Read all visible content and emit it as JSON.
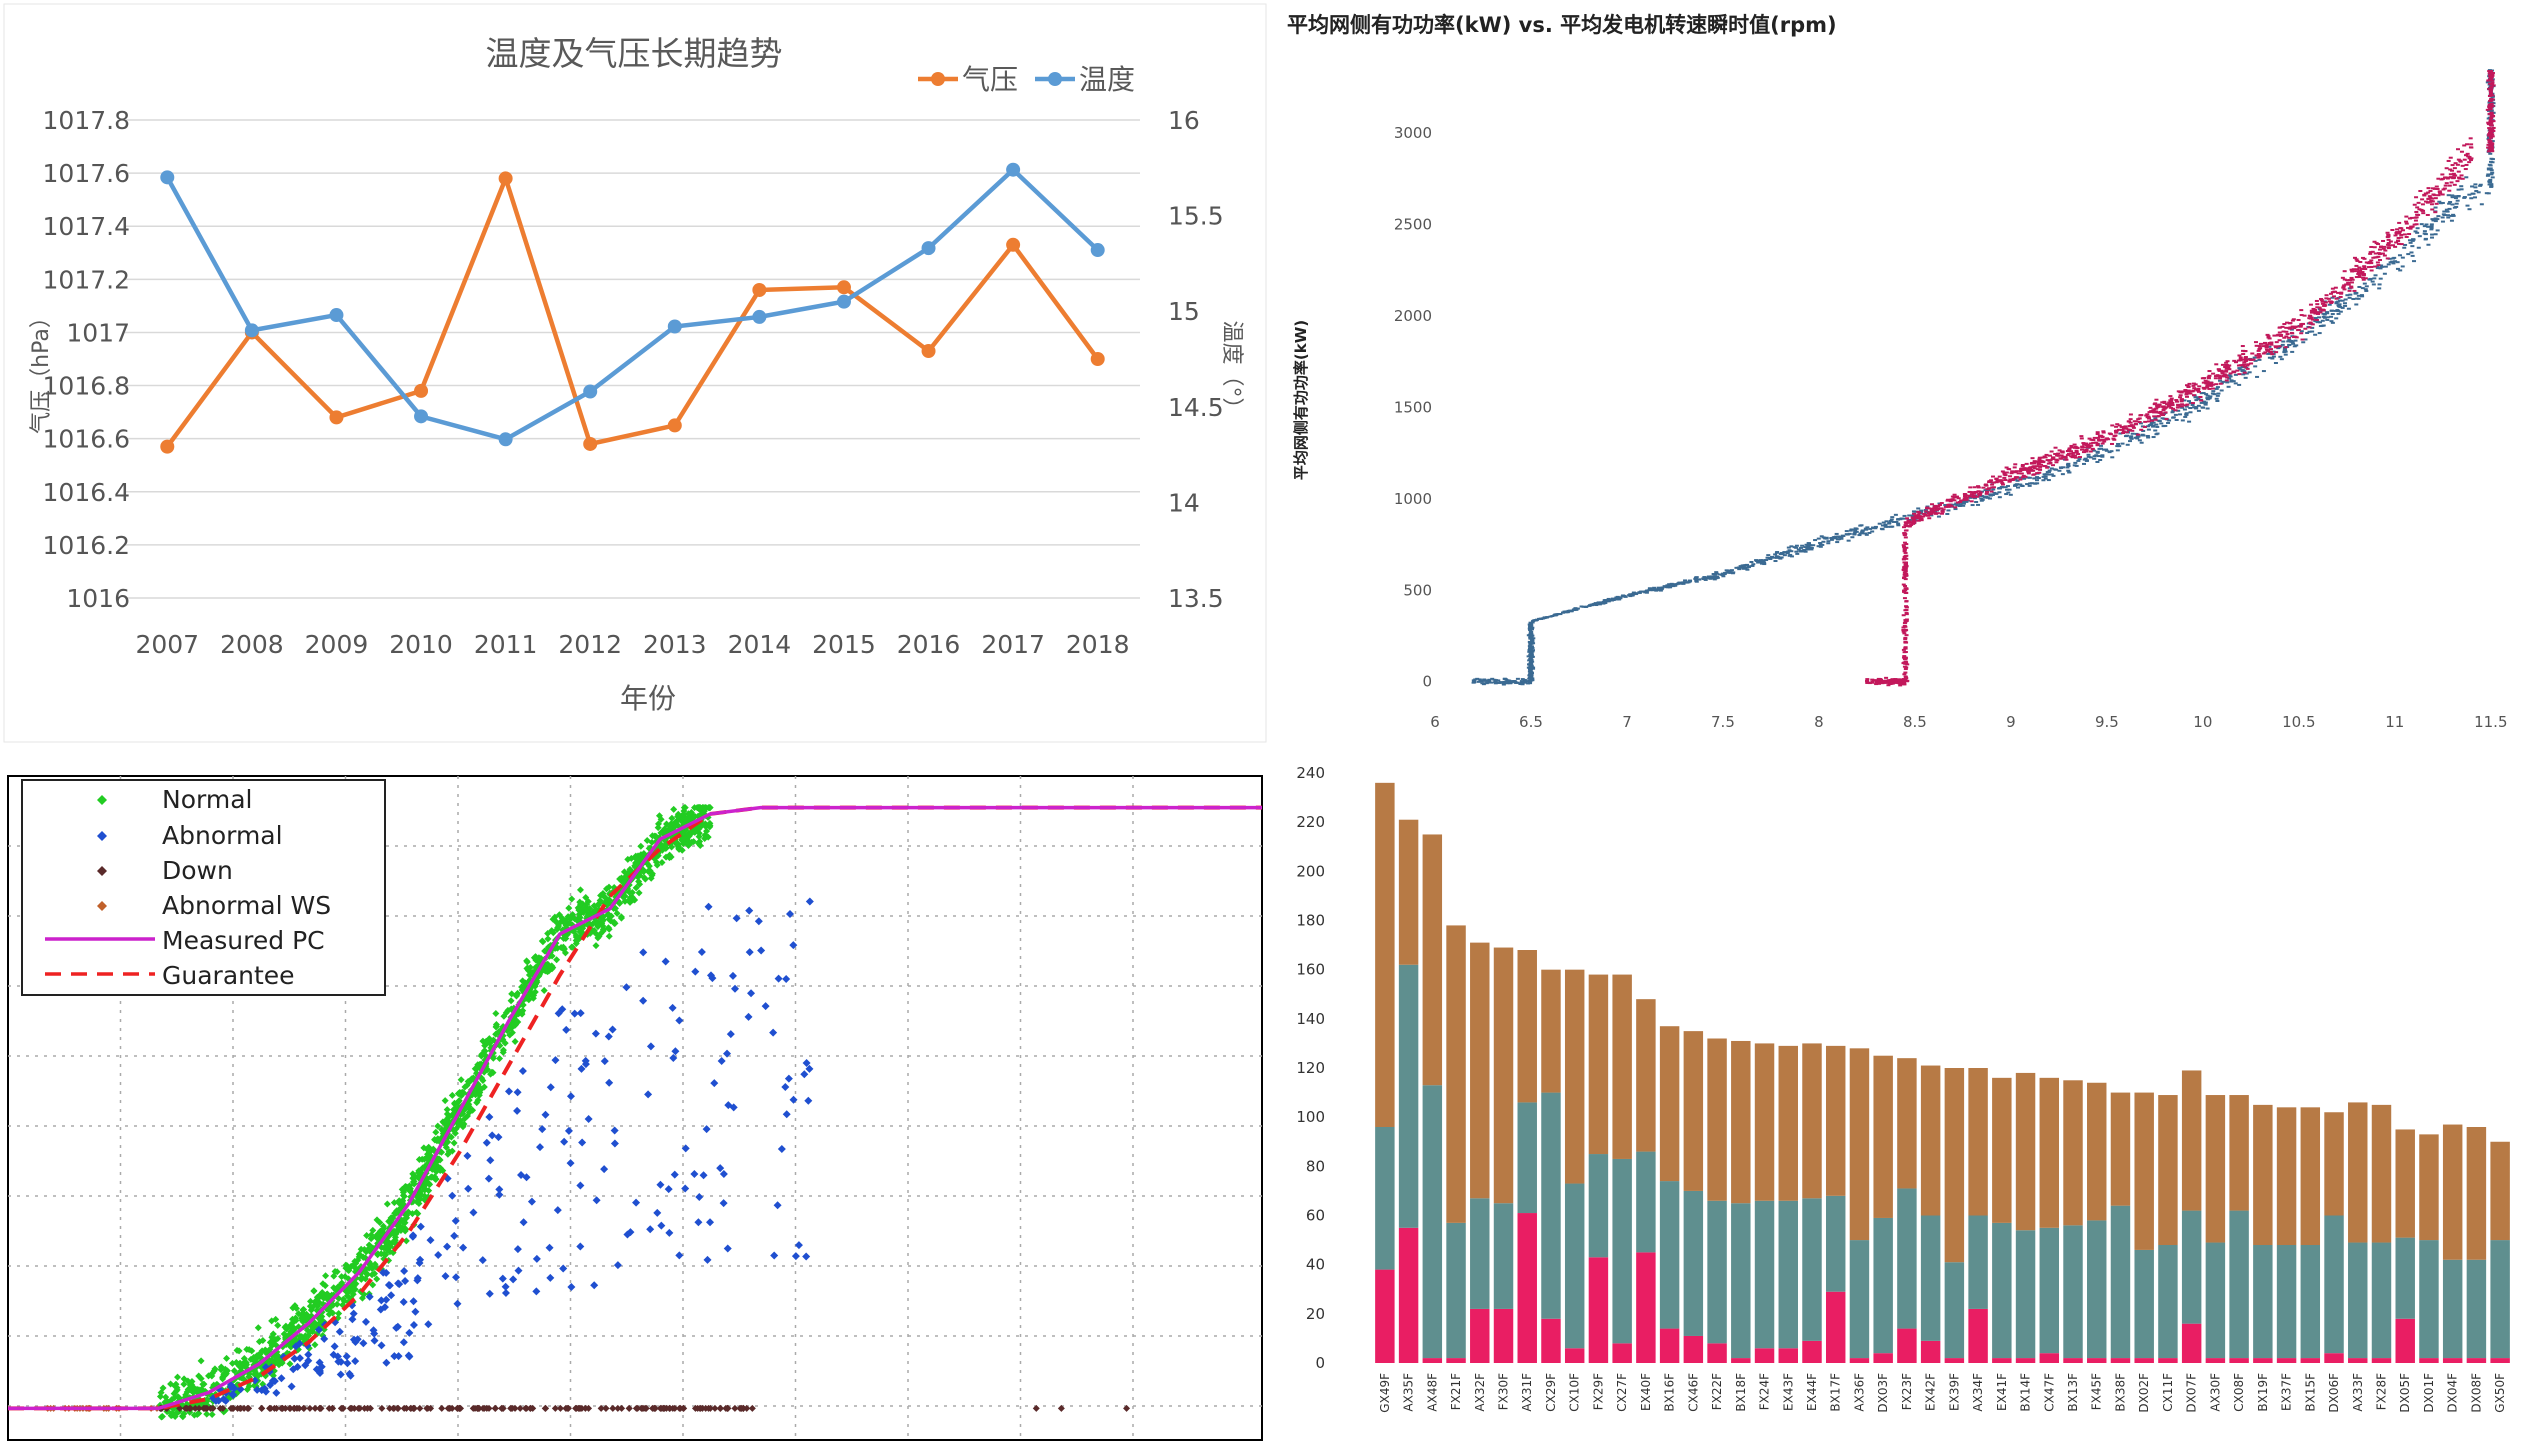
{
  "chart_data": [
    {
      "type": "line",
      "title": "温度及气压长期趋势",
      "xlabel": "年份",
      "ylabel_left": "气压（hPa）",
      "ylabel_right": "温度（°）",
      "x": [
        "2007",
        "2008",
        "2009",
        "2010",
        "2011",
        "2012",
        "2013",
        "2014",
        "2015",
        "2016",
        "2017",
        "2018"
      ],
      "y_left_ticks": [
        "1016",
        "1016.2",
        "1016.4",
        "1016.6",
        "1016.8",
        "1017",
        "1017.2",
        "1017.4",
        "1017.6",
        "1017.8"
      ],
      "y_right_ticks": [
        "13.5",
        "14",
        "14.5",
        "15",
        "15.5",
        "16"
      ],
      "ylim_left": [
        1016,
        1017.8
      ],
      "ylim_right": [
        13.5,
        16
      ],
      "legend": "top-right",
      "series": [
        {
          "name": "气压",
          "axis": "left",
          "color": "#ed7d31",
          "values": [
            1016.57,
            1017.0,
            1016.68,
            1016.78,
            1017.58,
            1016.58,
            1016.65,
            1017.16,
            1017.17,
            1016.93,
            1017.33,
            1016.9
          ]
        },
        {
          "name": "温度",
          "axis": "right",
          "color": "#5b9bd5",
          "values": [
            15.7,
            14.9,
            14.98,
            14.45,
            14.33,
            14.58,
            14.92,
            14.97,
            15.05,
            15.33,
            15.74,
            15.32
          ]
        }
      ]
    },
    {
      "type": "scatter",
      "title": "平均网侧有功功率(kW) vs. 平均发电机转速瞬时值(rpm)",
      "ylabel": "平均网侧有功功率(kW)",
      "x_ticks": [
        "6",
        "6.5",
        "7",
        "7.5",
        "8",
        "8.5",
        "9",
        "9.5",
        "10",
        "10.5",
        "11",
        "11.5"
      ],
      "y_ticks": [
        "0",
        "500",
        "1000",
        "1500",
        "2000",
        "2500",
        "3000"
      ],
      "xlim": [
        6,
        11.6
      ],
      "ylim": [
        -100,
        3400
      ],
      "series": [
        {
          "name": "",
          "color": "#3b6a92",
          "points": [
            [
              6.2,
              0
            ],
            [
              6.5,
              0
            ],
            [
              6.5,
              330
            ],
            [
              7.0,
              470
            ],
            [
              7.5,
              590
            ],
            [
              8.0,
              760
            ],
            [
              8.4,
              880
            ],
            [
              9.0,
              1060
            ],
            [
              9.5,
              1270
            ],
            [
              10.0,
              1540
            ],
            [
              10.5,
              1880
            ],
            [
              11.0,
              2300
            ],
            [
              11.35,
              2650
            ],
            [
              11.5,
              2700
            ],
            [
              11.5,
              3350
            ]
          ]
        },
        {
          "name": "",
          "color": "#c2185b",
          "points": [
            [
              8.25,
              0
            ],
            [
              8.45,
              0
            ],
            [
              8.45,
              860
            ],
            [
              9.0,
              1130
            ],
            [
              9.5,
              1330
            ],
            [
              10.0,
              1620
            ],
            [
              10.5,
              1950
            ],
            [
              11.0,
              2420
            ],
            [
              11.4,
              2900
            ],
            [
              11.5,
              3350
            ]
          ]
        }
      ]
    },
    {
      "type": "scatter",
      "legend": "top-left",
      "legend_entries": [
        "Normal",
        "Abnormal",
        "Down",
        "Abnormal WS",
        "Measured PC",
        "Guarantee"
      ],
      "xlim": [
        0,
        25
      ],
      "ylim": [
        -100,
        2000
      ],
      "series": [
        {
          "name": "Normal",
          "color": "#22cc22"
        },
        {
          "name": "Abnormal",
          "color": "#1f4fd0"
        },
        {
          "name": "Down",
          "color": "#5a2a2a"
        },
        {
          "name": "Abnormal WS",
          "color": "#c0602a"
        },
        {
          "name": "Measured PC",
          "color": "#cc22cc",
          "points": [
            [
              0,
              0
            ],
            [
              3,
              0
            ],
            [
              4,
              50
            ],
            [
              5,
              140
            ],
            [
              6,
              270
            ],
            [
              7,
              430
            ],
            [
              8,
              650
            ],
            [
              9,
              940
            ],
            [
              10,
              1230
            ],
            [
              11,
              1500
            ],
            [
              12,
              1580
            ],
            [
              13,
              1800
            ],
            [
              14,
              1880
            ],
            [
              15,
              1900
            ],
            [
              25,
              1900
            ]
          ]
        },
        {
          "name": "Guarantee",
          "color": "#ee2222",
          "points": [
            [
              0,
              0
            ],
            [
              3,
              0
            ],
            [
              4,
              30
            ],
            [
              5,
              100
            ],
            [
              6,
              210
            ],
            [
              7,
              360
            ],
            [
              8,
              560
            ],
            [
              9,
              810
            ],
            [
              10,
              1090
            ],
            [
              11,
              1370
            ],
            [
              12,
              1620
            ],
            [
              13,
              1770
            ],
            [
              14,
              1880
            ],
            [
              15,
              1900
            ],
            [
              25,
              1900
            ]
          ]
        }
      ]
    },
    {
      "type": "bar",
      "stacked": true,
      "y_ticks": [
        "0",
        "20",
        "40",
        "60",
        "80",
        "100",
        "120",
        "140",
        "160",
        "180",
        "200",
        "220",
        "240"
      ],
      "ylim": [
        0,
        240
      ],
      "categories": [
        "GX49F",
        "AX35F",
        "AX48F",
        "FX21F",
        "AX32F",
        "FX30F",
        "AX31F",
        "CX29F",
        "CX10F",
        "FX29F",
        "CX27F",
        "EX40F",
        "BX16F",
        "CX46F",
        "FX22F",
        "BX18F",
        "FX24F",
        "EX43F",
        "EX44F",
        "BX17F",
        "AX36F",
        "DX03F",
        "FX23F",
        "EX42F",
        "EX39F",
        "AX34F",
        "EX41F",
        "BX14F",
        "CX47F",
        "BX13F",
        "FX45F",
        "BX38F",
        "DX02F",
        "CX11F",
        "DX07F",
        "AX30F",
        "CX08F",
        "BX19F",
        "EX37F",
        "BX15F",
        "DX06F",
        "AX33F",
        "FX28F",
        "DX05F",
        "DX01F",
        "DX04F",
        "DX08F",
        "GX50F"
      ],
      "series": [
        {
          "name": "",
          "color": "#e91e63",
          "values": [
            38,
            55,
            2,
            2,
            22,
            22,
            61,
            18,
            6,
            43,
            8,
            45,
            14,
            11,
            8,
            2,
            6,
            6,
            9,
            29,
            2,
            4,
            14,
            9,
            2,
            22,
            2,
            2,
            4,
            2,
            2,
            2,
            2,
            2,
            16,
            2,
            2,
            2,
            2,
            2,
            4,
            2,
            2,
            18,
            2,
            2,
            2,
            2
          ]
        },
        {
          "name": "",
          "color": "#5f8f8f",
          "values": [
            58,
            107,
            111,
            55,
            45,
            43,
            45,
            92,
            67,
            42,
            75,
            41,
            60,
            59,
            58,
            63,
            60,
            60,
            58,
            39,
            48,
            55,
            57,
            51,
            39,
            38,
            55,
            52,
            51,
            54,
            56,
            62,
            44,
            46,
            46,
            47,
            60,
            46,
            46,
            46,
            56,
            47,
            47,
            33,
            48,
            40,
            40,
            48
          ]
        },
        {
          "name": "",
          "color": "#b77a45",
          "values": [
            140,
            59,
            102,
            121,
            104,
            104,
            62,
            50,
            87,
            73,
            75,
            62,
            63,
            65,
            66,
            66,
            64,
            63,
            63,
            61,
            78,
            66,
            53,
            61,
            79,
            60,
            59,
            64,
            61,
            59,
            56,
            46,
            64,
            61,
            57,
            60,
            47,
            57,
            56,
            56,
            42,
            57,
            56,
            44,
            43,
            55,
            54,
            40
          ]
        }
      ]
    }
  ]
}
